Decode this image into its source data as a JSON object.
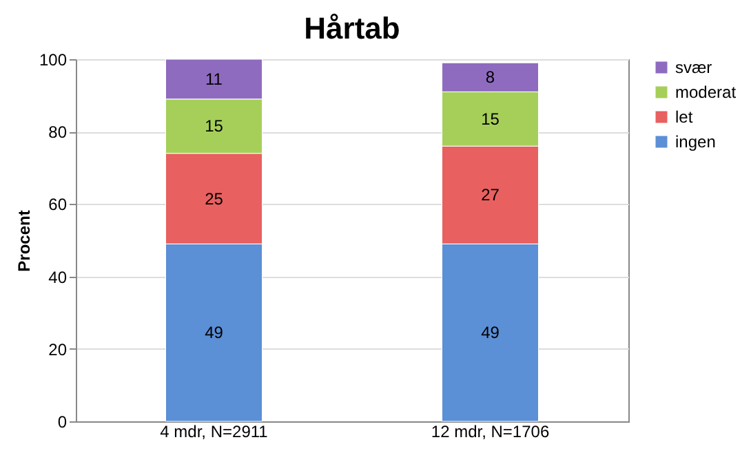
{
  "chart_data": {
    "type": "bar",
    "title": "Hårtab",
    "ylabel": "Procent",
    "categories": [
      "4 mdr, N=2911",
      "12 mdr, N=1706"
    ],
    "series": [
      {
        "name": "ingen",
        "color": "#5b8fd6",
        "values": [
          49,
          49
        ]
      },
      {
        "name": "let",
        "color": "#e8605f",
        "values": [
          25,
          27
        ]
      },
      {
        "name": "moderat",
        "color": "#a6cf5a",
        "values": [
          15,
          15
        ]
      },
      {
        "name": "svær",
        "color": "#8e6bbf",
        "values": [
          11,
          8
        ]
      }
    ],
    "stacked": true,
    "data_labels": true,
    "ylim": [
      0,
      100
    ],
    "yticks": [
      0,
      20,
      40,
      60,
      80,
      100
    ],
    "grid": "y",
    "legend": "right"
  }
}
